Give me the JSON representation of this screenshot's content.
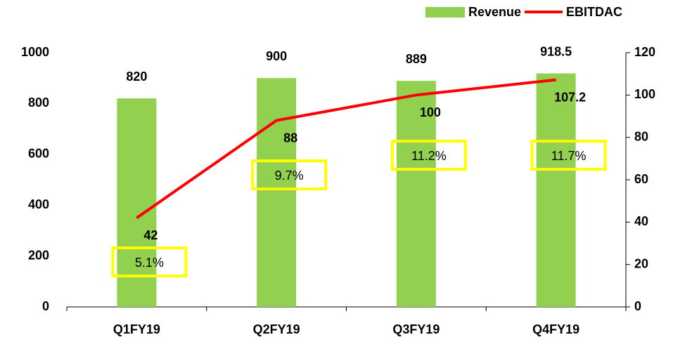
{
  "chart_data": {
    "type": "combo",
    "categories": [
      "Q1FY19",
      "Q2FY19",
      "Q3FY19",
      "Q4FY19"
    ],
    "series": [
      {
        "name": "Revenue",
        "type": "bar",
        "color": "#92d050",
        "values": [
          820,
          900,
          889,
          918.5
        ]
      },
      {
        "name": "EBITDAC",
        "type": "line",
        "axis": "y2",
        "color": "#ff0000",
        "values": [
          42,
          88,
          100,
          107.2
        ]
      }
    ],
    "annotations": [
      "5.1%",
      "9.7%",
      "11.2%",
      "11.7%"
    ],
    "ylim": [
      0,
      1000
    ],
    "yticks": [
      0,
      200,
      400,
      600,
      800,
      1000
    ],
    "y2lim": [
      0,
      120
    ],
    "y2ticks": [
      0,
      20,
      40,
      60,
      80,
      100,
      120
    ],
    "grid": false,
    "legend": "top-right"
  }
}
